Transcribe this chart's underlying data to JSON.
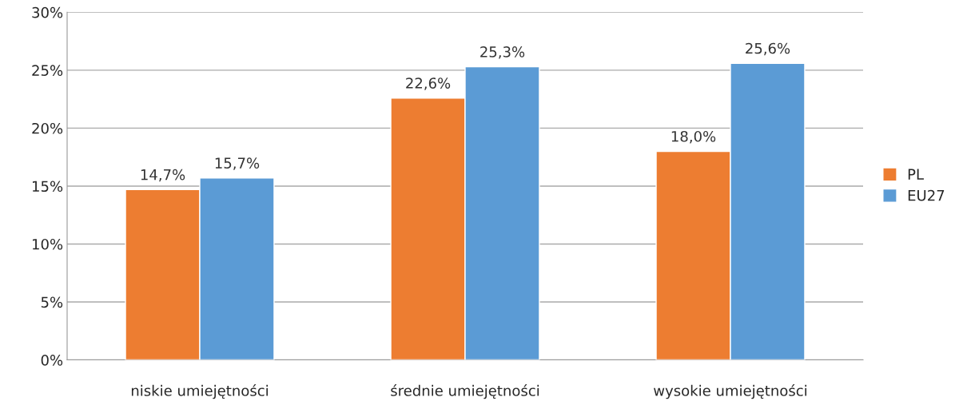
{
  "chart_data": {
    "type": "bar",
    "categories": [
      "niskie umiejętności",
      "średnie umiejętności",
      "wysokie umiejętności"
    ],
    "series": [
      {
        "name": "PL",
        "color": "#ed7d31",
        "values": [
          14.7,
          22.6,
          18.0
        ],
        "value_labels": [
          "14,7%",
          "22,6%",
          "18,0%"
        ]
      },
      {
        "name": "EU27",
        "color": "#5b9bd5",
        "values": [
          15.7,
          25.3,
          25.6
        ],
        "value_labels": [
          "15,7%",
          "25,3%",
          "25,6%"
        ]
      }
    ],
    "ylim": [
      0,
      30
    ],
    "yticks": [
      {
        "value": 0,
        "label": "0%"
      },
      {
        "value": 5,
        "label": "5%"
      },
      {
        "value": 10,
        "label": "10%"
      },
      {
        "value": 15,
        "label": "15%"
      },
      {
        "value": 20,
        "label": "20%"
      },
      {
        "value": 25,
        "label": "25%"
      },
      {
        "value": 30,
        "label": "30%"
      }
    ],
    "grid": "y",
    "legend": "right"
  }
}
